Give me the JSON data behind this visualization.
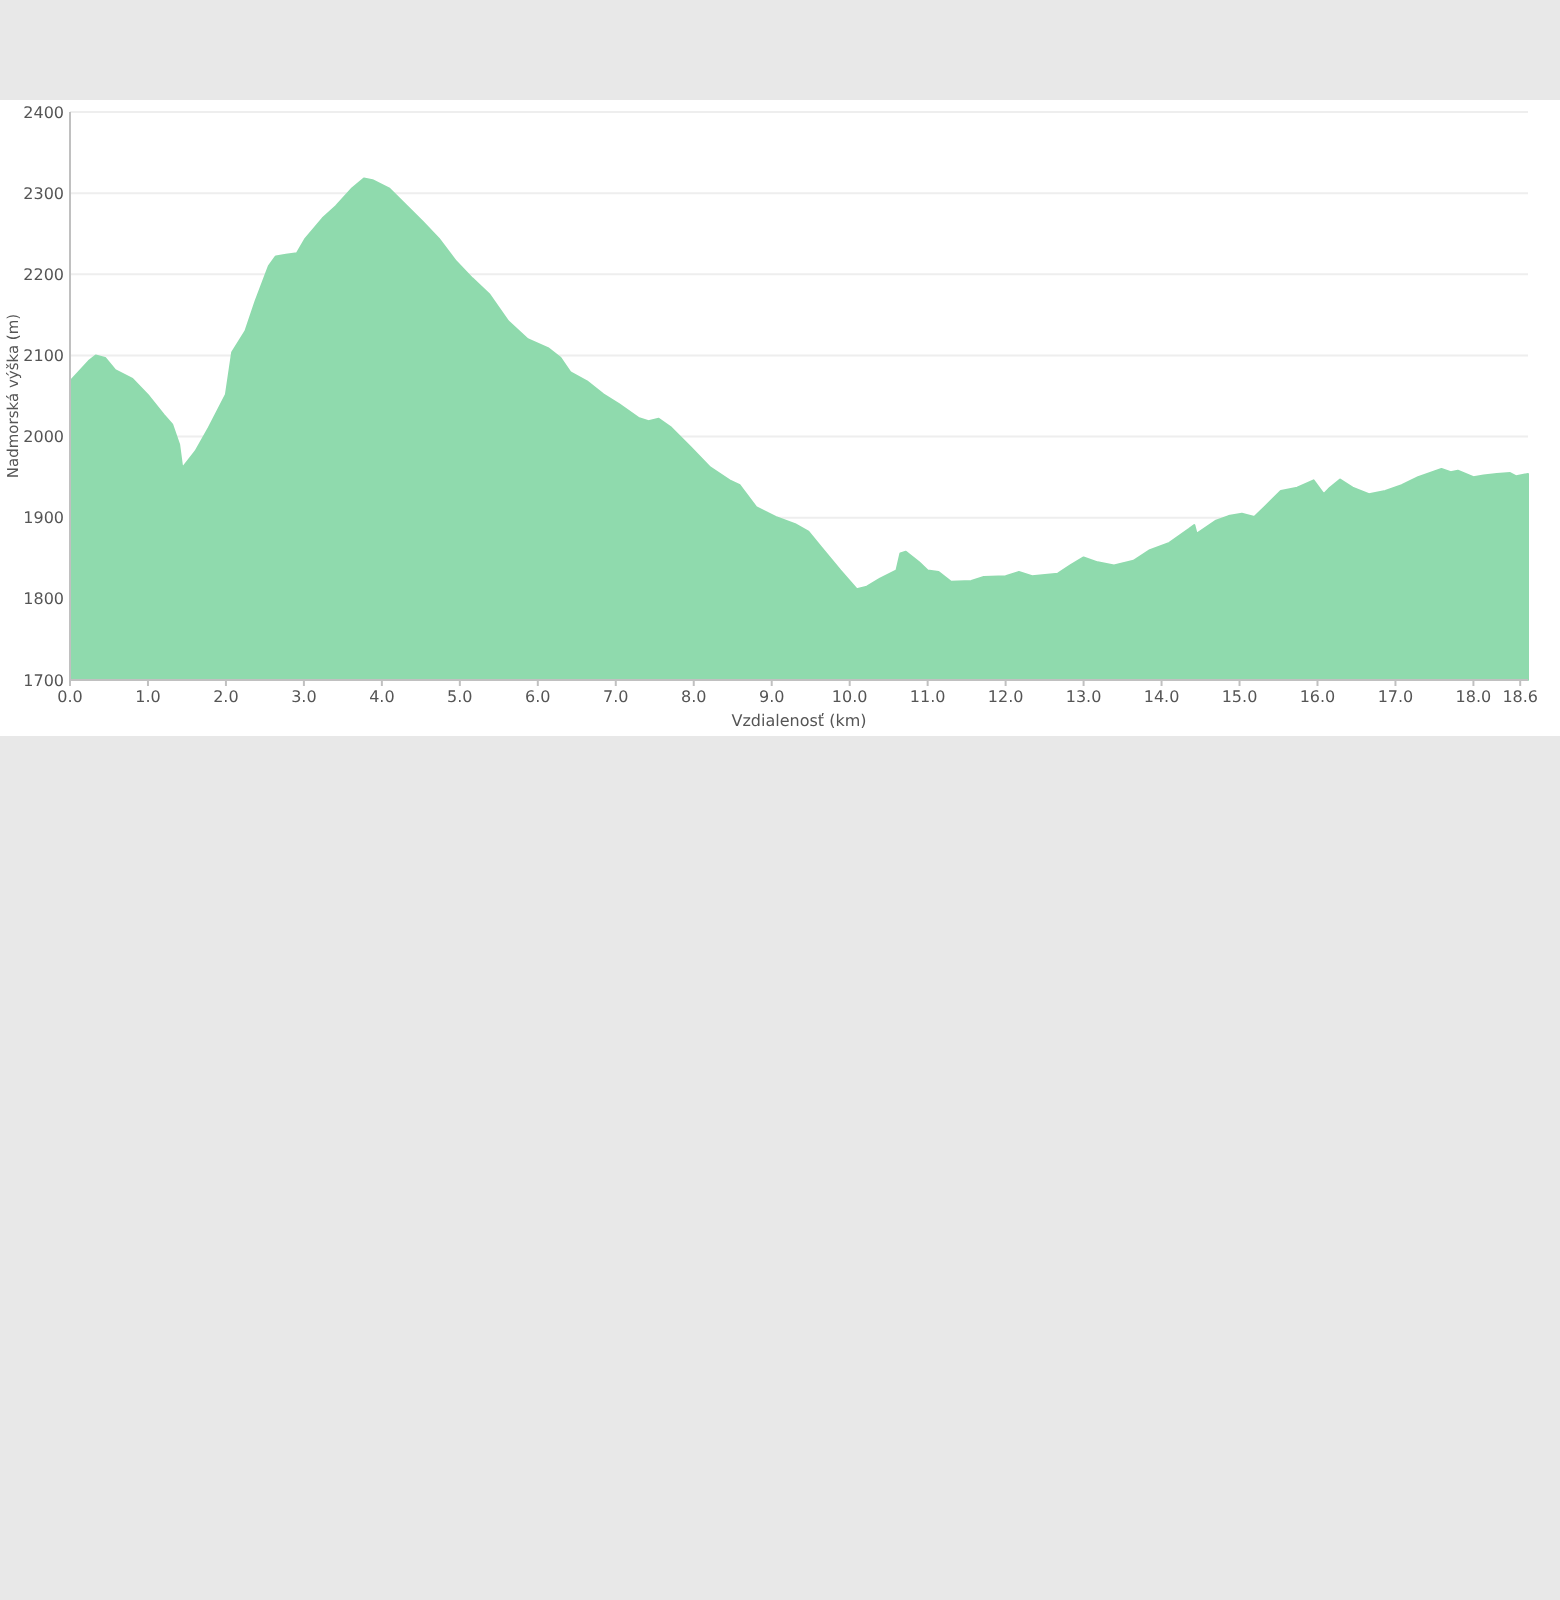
{
  "chart_data": {
    "type": "area",
    "xlabel": "Vzdialenosť (km)",
    "ylabel": "Nadmorská výška (m)",
    "xlim": [
      0,
      18.7
    ],
    "ylim": [
      1700,
      2400
    ],
    "xticks": [
      {
        "value": 0,
        "label": "0.0"
      },
      {
        "value": 1,
        "label": "1.0"
      },
      {
        "value": 2,
        "label": "2.0"
      },
      {
        "value": 3,
        "label": "3.0"
      },
      {
        "value": 4,
        "label": "4.0"
      },
      {
        "value": 5,
        "label": "5.0"
      },
      {
        "value": 6,
        "label": "6.0"
      },
      {
        "value": 7,
        "label": "7.0"
      },
      {
        "value": 8,
        "label": "8.0"
      },
      {
        "value": 9,
        "label": "9.0"
      },
      {
        "value": 10,
        "label": "10.0"
      },
      {
        "value": 11,
        "label": "11.0"
      },
      {
        "value": 12,
        "label": "12.0"
      },
      {
        "value": 13,
        "label": "13.0"
      },
      {
        "value": 14,
        "label": "14.0"
      },
      {
        "value": 15,
        "label": "15.0"
      },
      {
        "value": 16,
        "label": "16.0"
      },
      {
        "value": 17,
        "label": "17.0"
      },
      {
        "value": 18,
        "label": "18.0"
      },
      {
        "value": 18.6,
        "label": "18.6"
      }
    ],
    "yticks": [
      1700,
      1800,
      1900,
      2000,
      2100,
      2200,
      2300,
      2400
    ],
    "grid": "y",
    "series": [
      {
        "color": "#8fdaad",
        "x": [
          0,
          0.24,
          0.33,
          0.45,
          0.58,
          0.8,
          1.01,
          1.2,
          1.31,
          1.4,
          1.44,
          1.61,
          1.78,
          2.0,
          2.08,
          2.25,
          2.38,
          2.55,
          2.64,
          2.77,
          2.91,
          3.02,
          3.24,
          3.41,
          3.62,
          3.77,
          3.88,
          4.09,
          4.31,
          4.52,
          4.73,
          4.95,
          5.16,
          5.38,
          5.62,
          5.87,
          6.13,
          6.29,
          6.42,
          6.63,
          6.84,
          7.04,
          7.29,
          7.42,
          7.55,
          7.71,
          7.96,
          8.21,
          8.46,
          8.59,
          8.8,
          9.05,
          9.3,
          9.47,
          9.63,
          9.88,
          10.09,
          10.22,
          10.39,
          10.6,
          10.65,
          10.72,
          10.89,
          11.0,
          11.14,
          11.3,
          11.56,
          11.72,
          12.0,
          12.17,
          12.34,
          12.67,
          12.84,
          13.0,
          13.18,
          13.39,
          13.64,
          13.85,
          14.1,
          14.35,
          14.42,
          14.45,
          14.69,
          14.86,
          15.03,
          15.19,
          15.32,
          15.53,
          15.74,
          15.95,
          16.08,
          16.16,
          16.29,
          16.45,
          16.66,
          16.87,
          17.08,
          17.29,
          17.59,
          17.71,
          17.8,
          18.0,
          18.13,
          18.3,
          18.47,
          18.55,
          18.7
        ],
        "values": [
          2068,
          2093,
          2100,
          2097,
          2082,
          2071,
          2050,
          2027,
          2015,
          1990,
          1961,
          1982,
          2011,
          2052,
          2104,
          2130,
          2167,
          2210,
          2222,
          2224,
          2226,
          2244,
          2269,
          2284,
          2306,
          2318,
          2316,
          2306,
          2285,
          2265,
          2244,
          2216,
          2195,
          2175,
          2142,
          2120,
          2109,
          2097,
          2079,
          2068,
          2052,
          2040,
          2023,
          2019,
          2022,
          2011,
          1987,
          1962,
          1946,
          1940,
          1913,
          1901,
          1892,
          1883,
          1864,
          1835,
          1812,
          1815,
          1825,
          1835,
          1856,
          1858,
          1845,
          1835,
          1833,
          1821,
          1822,
          1827,
          1828,
          1833,
          1828,
          1831,
          1842,
          1851,
          1845,
          1841,
          1847,
          1860,
          1869,
          1886,
          1891,
          1880,
          1896,
          1902,
          1905,
          1901,
          1913,
          1933,
          1937,
          1946,
          1929,
          1937,
          1947,
          1937,
          1929,
          1933,
          1940,
          1950,
          1960,
          1956,
          1958,
          1950,
          1952,
          1954,
          1955,
          1951,
          1954
        ]
      }
    ]
  }
}
